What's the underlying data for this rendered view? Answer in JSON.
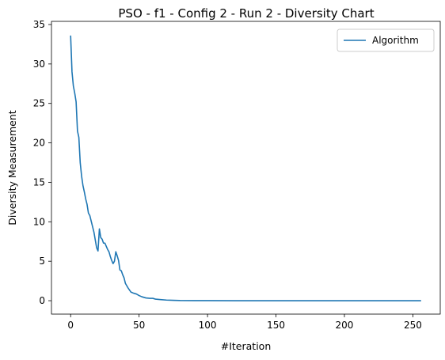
{
  "chart_data": {
    "type": "line",
    "title": "PSO - f1 - Config 2 - Run 2 - Diversity Chart",
    "xlabel": "#Iteration",
    "ylabel": "Diversity Measurement",
    "xlim": [
      -14,
      270
    ],
    "ylim": [
      -1.7,
      35.4
    ],
    "xticks": [
      0,
      50,
      100,
      150,
      200,
      250
    ],
    "yticks": [
      0,
      5,
      10,
      15,
      20,
      25,
      30,
      35
    ],
    "grid": false,
    "legend_position": "top-right",
    "colors": {
      "series": "#1f77b4",
      "frame": "#000000"
    },
    "series": [
      {
        "name": "Algorithm",
        "x": [
          0,
          1,
          2,
          3,
          4,
          5,
          6,
          7,
          8,
          9,
          10,
          11,
          12,
          13,
          14,
          15,
          16,
          17,
          18,
          19,
          20,
          21,
          22,
          23,
          24,
          25,
          26,
          27,
          28,
          29,
          30,
          31,
          32,
          33,
          34,
          35,
          36,
          37,
          38,
          39,
          40,
          42,
          44,
          46,
          48,
          50,
          52,
          55,
          58,
          60,
          62,
          65,
          70,
          75,
          80,
          90,
          100,
          120,
          150,
          200,
          256
        ],
        "values": [
          33.6,
          29.0,
          27.2,
          26.3,
          25.2,
          21.5,
          20.7,
          17.5,
          15.8,
          14.6,
          13.8,
          12.9,
          12.2,
          11.1,
          10.8,
          10.1,
          9.4,
          8.7,
          7.7,
          6.7,
          6.3,
          9.1,
          8.0,
          7.8,
          7.3,
          7.3,
          6.9,
          6.5,
          6.2,
          5.6,
          5.1,
          4.7,
          5.0,
          6.2,
          5.7,
          5.1,
          3.9,
          3.8,
          3.3,
          2.9,
          2.2,
          1.6,
          1.1,
          0.95,
          0.85,
          0.65,
          0.5,
          0.35,
          0.3,
          0.3,
          0.2,
          0.15,
          0.08,
          0.05,
          0.02,
          0.01,
          0.01,
          0.0,
          0.0,
          0.0,
          0.0
        ]
      }
    ]
  }
}
